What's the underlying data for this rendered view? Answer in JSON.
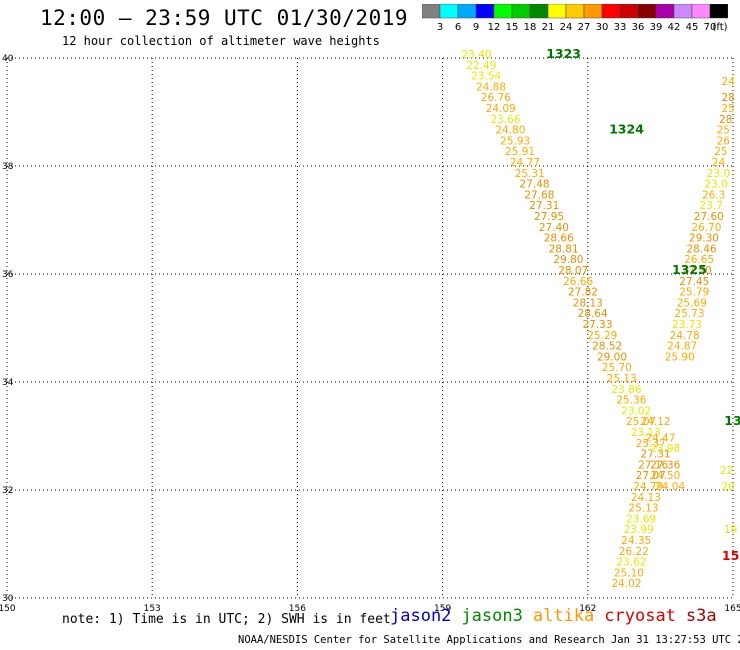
{
  "header": {
    "title": "12:00 – 23:59 UTC 01/30/2019",
    "subtitle": "12 hour collection of altimeter wave heights"
  },
  "colorbar": {
    "unit_label": "(ft)",
    "bins": [
      {
        "color": "#808080",
        "label": "3"
      },
      {
        "color": "#00ffff",
        "label": "6"
      },
      {
        "color": "#00aaff",
        "label": "9"
      },
      {
        "color": "#0000ff",
        "label": "12"
      },
      {
        "color": "#00ff00",
        "label": "15"
      },
      {
        "color": "#00cc00",
        "label": "18"
      },
      {
        "color": "#008800",
        "label": "21"
      },
      {
        "color": "#ffff00",
        "label": "24"
      },
      {
        "color": "#ffcc00",
        "label": "27"
      },
      {
        "color": "#ff9900",
        "label": "30"
      },
      {
        "color": "#ff0000",
        "label": "33"
      },
      {
        "color": "#cc0000",
        "label": "36"
      },
      {
        "color": "#880000",
        "label": "39"
      },
      {
        "color": "#aa00aa",
        "label": "42"
      },
      {
        "color": "#cc88ff",
        "label": "45"
      },
      {
        "color": "#ff88ff",
        "label": "70"
      },
      {
        "color": "#000000",
        "label": ""
      }
    ]
  },
  "colors": {
    "under24": "#e8e800",
    "from24": "#ffaa00",
    "from27": "#e89000"
  },
  "chart_data": {
    "type": "scatter",
    "title": "12:00 – 23:59 UTC 01/30/2019",
    "subtitle": "12 hour collection of altimeter wave heights",
    "xlim": [
      150,
      165
    ],
    "ylim": [
      30,
      40
    ],
    "x_ticks": [
      "150",
      "153",
      "156",
      "159",
      "162",
      "165"
    ],
    "y_ticks": [
      "30",
      "32",
      "34",
      "36",
      "38",
      "40"
    ],
    "grid": true,
    "main_track": [
      {
        "x": 159.7,
        "y": 40.0,
        "v": "23.40"
      },
      {
        "x": 159.8,
        "y": 39.8,
        "v": "22.49"
      },
      {
        "x": 159.9,
        "y": 39.6,
        "v": "23.54"
      },
      {
        "x": 160.0,
        "y": 39.4,
        "v": "24.88"
      },
      {
        "x": 160.1,
        "y": 39.2,
        "v": "26.76"
      },
      {
        "x": 160.2,
        "y": 39.0,
        "v": "24.09"
      },
      {
        "x": 160.3,
        "y": 38.8,
        "v": "23.66"
      },
      {
        "x": 160.4,
        "y": 38.6,
        "v": "24.80"
      },
      {
        "x": 160.5,
        "y": 38.4,
        "v": "25.93"
      },
      {
        "x": 160.6,
        "y": 38.2,
        "v": "25.91"
      },
      {
        "x": 160.7,
        "y": 38.0,
        "v": "24.77"
      },
      {
        "x": 160.8,
        "y": 37.8,
        "v": "25.31"
      },
      {
        "x": 160.9,
        "y": 37.6,
        "v": "27.48"
      },
      {
        "x": 161.0,
        "y": 37.4,
        "v": "27.68"
      },
      {
        "x": 161.1,
        "y": 37.2,
        "v": "27.31"
      },
      {
        "x": 161.2,
        "y": 37.0,
        "v": "27.95"
      },
      {
        "x": 161.3,
        "y": 36.8,
        "v": "27.40"
      },
      {
        "x": 161.4,
        "y": 36.6,
        "v": "28.66"
      },
      {
        "x": 161.5,
        "y": 36.4,
        "v": "28.81"
      },
      {
        "x": 161.6,
        "y": 36.2,
        "v": "29.80"
      },
      {
        "x": 161.7,
        "y": 36.0,
        "v": "28.07"
      },
      {
        "x": 161.8,
        "y": 35.8,
        "v": "26.66"
      },
      {
        "x": 161.9,
        "y": 35.6,
        "v": "27.82"
      },
      {
        "x": 162.0,
        "y": 35.4,
        "v": "28.13"
      },
      {
        "x": 162.1,
        "y": 35.2,
        "v": "28.64"
      },
      {
        "x": 162.2,
        "y": 35.0,
        "v": "27.33"
      },
      {
        "x": 162.3,
        "y": 34.8,
        "v": "25.29"
      },
      {
        "x": 162.4,
        "y": 34.6,
        "v": "28.52"
      },
      {
        "x": 162.5,
        "y": 34.4,
        "v": "29.00"
      },
      {
        "x": 162.6,
        "y": 34.2,
        "v": "25.70"
      },
      {
        "x": 162.7,
        "y": 34.0,
        "v": "25.13"
      },
      {
        "x": 162.8,
        "y": 33.8,
        "v": "23.86"
      },
      {
        "x": 162.9,
        "y": 33.6,
        "v": "25.36"
      },
      {
        "x": 163.0,
        "y": 33.4,
        "v": "23.02"
      },
      {
        "x": 163.1,
        "y": 33.2,
        "v": "25.07"
      },
      {
        "x": 163.2,
        "y": 33.0,
        "v": "23.13"
      },
      {
        "x": 163.3,
        "y": 32.8,
        "v": "25.37"
      },
      {
        "x": 163.4,
        "y": 32.6,
        "v": "27.31"
      }
    ],
    "lower_track": [
      {
        "x": 163.35,
        "y": 32.4,
        "v": "27.16"
      },
      {
        "x": 163.3,
        "y": 32.2,
        "v": "27.07"
      },
      {
        "x": 163.25,
        "y": 32.0,
        "v": "24.79"
      },
      {
        "x": 163.2,
        "y": 31.8,
        "v": "24.13"
      },
      {
        "x": 163.15,
        "y": 31.6,
        "v": "25.13"
      },
      {
        "x": 163.1,
        "y": 31.4,
        "v": "23.69"
      },
      {
        "x": 163.05,
        "y": 31.2,
        "v": "23.99"
      },
      {
        "x": 163.0,
        "y": 31.0,
        "v": "24.35"
      },
      {
        "x": 162.95,
        "y": 30.8,
        "v": "26.22"
      },
      {
        "x": 162.9,
        "y": 30.6,
        "v": "23.62"
      },
      {
        "x": 162.85,
        "y": 30.4,
        "v": "25.10"
      },
      {
        "x": 162.8,
        "y": 30.2,
        "v": "24.02"
      }
    ],
    "mid_extra": [
      {
        "x": 163.4,
        "y": 33.2,
        "v": "24.12"
      },
      {
        "x": 163.5,
        "y": 32.9,
        "v": "24.47"
      },
      {
        "x": 163.6,
        "y": 32.7,
        "v": "23.98"
      },
      {
        "x": 163.6,
        "y": 32.4,
        "v": "27.36"
      },
      {
        "x": 163.6,
        "y": 32.2,
        "v": "24.50"
      },
      {
        "x": 163.7,
        "y": 32.0,
        "v": "24.04"
      }
    ],
    "right_track": [
      {
        "x": 164.9,
        "y": 39.5,
        "v": "24"
      },
      {
        "x": 164.9,
        "y": 39.2,
        "v": "28"
      },
      {
        "x": 164.9,
        "y": 39.0,
        "v": "25"
      },
      {
        "x": 164.85,
        "y": 38.8,
        "v": "28"
      },
      {
        "x": 164.8,
        "y": 38.6,
        "v": "25"
      },
      {
        "x": 164.8,
        "y": 38.4,
        "v": "26"
      },
      {
        "x": 164.75,
        "y": 38.2,
        "v": "25"
      },
      {
        "x": 164.7,
        "y": 38.0,
        "v": "24"
      },
      {
        "x": 164.7,
        "y": 37.8,
        "v": "23.0"
      },
      {
        "x": 164.65,
        "y": 37.6,
        "v": "23.0"
      },
      {
        "x": 164.6,
        "y": 37.4,
        "v": "26.3"
      },
      {
        "x": 164.55,
        "y": 37.2,
        "v": "23.7"
      },
      {
        "x": 164.5,
        "y": 37.0,
        "v": "27.60"
      },
      {
        "x": 164.45,
        "y": 36.8,
        "v": "26.70"
      },
      {
        "x": 164.4,
        "y": 36.6,
        "v": "29.30"
      },
      {
        "x": 164.35,
        "y": 36.4,
        "v": "28.46"
      },
      {
        "x": 164.3,
        "y": 36.2,
        "v": "26.65"
      },
      {
        "x": 164.25,
        "y": 36.0,
        "v": "27.20"
      },
      {
        "x": 164.2,
        "y": 35.8,
        "v": "27.45"
      },
      {
        "x": 164.2,
        "y": 35.6,
        "v": "25.79"
      },
      {
        "x": 164.15,
        "y": 35.4,
        "v": "25.69"
      },
      {
        "x": 164.1,
        "y": 35.2,
        "v": "25.73"
      },
      {
        "x": 164.05,
        "y": 35.0,
        "v": "23.73"
      },
      {
        "x": 164.0,
        "y": 34.8,
        "v": "24.78"
      },
      {
        "x": 163.95,
        "y": 34.6,
        "v": "24.87"
      },
      {
        "x": 163.9,
        "y": 34.4,
        "v": "25.90"
      }
    ],
    "right_edge_values": [
      {
        "x": 164.95,
        "y": 31.2,
        "v": "19"
      },
      {
        "x": 164.9,
        "y": 32.3,
        "v": "22."
      },
      {
        "x": 164.9,
        "y": 32.0,
        "v": "20"
      }
    ],
    "pass_labels": [
      {
        "x": 161.5,
        "y": 40.0,
        "text": "1323",
        "color": "#007700"
      },
      {
        "x": 162.8,
        "y": 38.6,
        "text": "1324",
        "color": "#007700"
      },
      {
        "x": 164.1,
        "y": 36.0,
        "text": "1325",
        "color": "#007700"
      },
      {
        "x": 165.0,
        "y": 33.2,
        "text": "13",
        "color": "#007700"
      },
      {
        "x": 164.95,
        "y": 30.7,
        "text": "15",
        "color": "#dd0000"
      }
    ]
  },
  "footer": {
    "note": "note: 1) Time is in UTC; 2) SWH is in feet",
    "satellites": [
      {
        "name": "jason2",
        "color": "#0000cc"
      },
      {
        "name": "jason3",
        "color": "#008800"
      },
      {
        "name": "altika",
        "color": "#ff9900"
      },
      {
        "name": "cryosat",
        "color": "#dd0000"
      },
      {
        "name": "s3a",
        "color": "#aa0000"
      }
    ],
    "credit": "NOAA/NESDIS Center for Satellite Applications and Research   Jan 31 13:27:53 UTC 2019"
  }
}
